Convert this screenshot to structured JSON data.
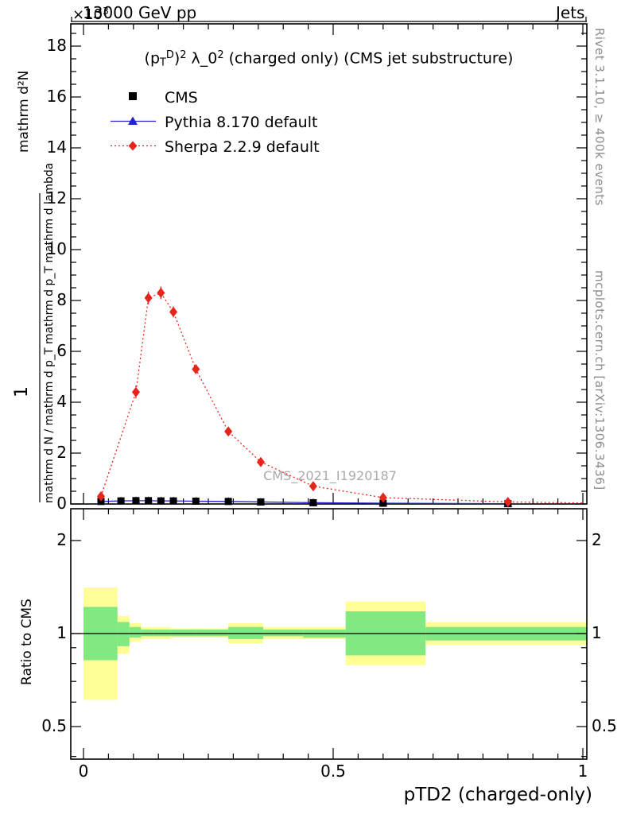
{
  "header": {
    "left": "13000 GeV pp",
    "right": "Jets"
  },
  "main_plot": {
    "multiplier_parts": [
      {
        "t": "×10"
      },
      {
        "t": "3",
        "s": "sup"
      }
    ],
    "title_parts": [
      {
        "t": "(p"
      },
      {
        "t": "T",
        "s": "sub"
      },
      {
        "t": "D",
        "s": "sup"
      },
      {
        "t": ")"
      },
      {
        "t": "2",
        "s": "sup"
      },
      {
        "t": " λ_0"
      },
      {
        "t": "2",
        "s": "sup"
      },
      {
        "t": " (charged only) (CMS jet substructure)"
      }
    ],
    "watermark": "CMS_2021_I1920187",
    "ylabel": {
      "numerator": "mathrm d²N",
      "one": "1",
      "denominator": "mathrm d N / mathrm d p_T mathrm d p_T mathrm d lambda"
    },
    "yticks": [
      "0",
      "2",
      "4",
      "6",
      "8",
      "10",
      "12",
      "14",
      "16",
      "18"
    ]
  },
  "legend": {
    "items": [
      {
        "label": "CMS",
        "marker": "square",
        "color": "#000000"
      },
      {
        "label": "Pythia 8.170 default",
        "marker": "triangle",
        "color": "#2222cc"
      },
      {
        "label": "Sherpa 2.2.9 default",
        "marker": "diamond",
        "color": "#e8251d"
      }
    ]
  },
  "sidebar": {
    "top": "Rivet 3.1.10, ≥ 400k events",
    "bottom": "mcplots.cern.ch [arXiv:1306.3436]"
  },
  "ratio": {
    "ylabel": "Ratio to CMS",
    "yticks": [
      "0.5",
      "1",
      "2"
    ]
  },
  "xaxis": {
    "label": "pTD2 (charged-only)",
    "ticks": [
      "0",
      "0.5",
      "1"
    ]
  },
  "colors": {
    "red": "#e8251d",
    "blue": "#2222cc",
    "yellow_band": "#ffff96",
    "green_band": "#82e882",
    "frame": "#000000",
    "gray_text": "#8c8c8c",
    "watermark": "#aaaaaa"
  },
  "chart_data": {
    "type": "line",
    "title": "(p_T^D)^2 λ_0^2 (charged only) (CMS jet substructure)",
    "xlabel": "pTD2 (charged-only)",
    "ylabel": "1 / mathrm d N / mathrm d p_T · mathrm d²N / (mathrm d p_T mathrm d lambda)",
    "xlim": [
      0,
      1
    ],
    "ylim_e3": [
      0,
      18.9
    ],
    "y_scale_label": "×10³",
    "grid": false,
    "legend_position": "top-left-inside",
    "series": [
      {
        "name": "CMS",
        "marker": "square",
        "color": "#000000",
        "x": [
          0.035,
          0.075,
          0.105,
          0.13,
          0.155,
          0.18,
          0.225,
          0.29,
          0.355,
          0.46,
          0.6,
          0.85
        ],
        "y_e3": [
          0.1,
          0.12,
          0.13,
          0.13,
          0.12,
          0.12,
          0.11,
          0.1,
          0.08,
          0.05,
          0.03,
          0.012
        ]
      },
      {
        "name": "Pythia 8.170 default",
        "marker": "triangle-up",
        "color": "#2222cc",
        "line": "solid",
        "x": [
          0.035,
          0.075,
          0.105,
          0.13,
          0.155,
          0.18,
          0.225,
          0.29,
          0.355,
          0.46,
          0.6,
          0.85
        ],
        "y_e3": [
          0.1,
          0.12,
          0.13,
          0.13,
          0.12,
          0.12,
          0.11,
          0.1,
          0.08,
          0.05,
          0.03,
          0.012
        ]
      },
      {
        "name": "Sherpa 2.2.9 default",
        "marker": "diamond",
        "color": "#e8251d",
        "line": "dotted",
        "x": [
          0.035,
          0.105,
          0.13,
          0.155,
          0.18,
          0.225,
          0.29,
          0.355,
          0.46,
          0.6,
          0.85
        ],
        "y_e3": [
          0.3,
          4.4,
          8.1,
          8.3,
          7.55,
          5.3,
          2.85,
          1.65,
          0.7,
          0.25,
          0.08
        ],
        "yerr_e3": [
          0.08,
          0.25,
          0.25,
          0.25,
          0.22,
          0.18,
          0.12,
          0.1,
          0.07,
          0.04,
          0.03
        ],
        "line_end": {
          "x": 1.0,
          "y_e3": 0.04
        }
      }
    ],
    "ratio_panel": {
      "ylabel": "Ratio to CMS",
      "yscale": "log",
      "ylim": [
        0.39,
        2.55
      ],
      "ref_line": 1.0,
      "bands": [
        {
          "x0": 0.0,
          "x1": 0.068,
          "yellow": [
            0.61,
            1.41
          ],
          "green": [
            0.82,
            1.22
          ]
        },
        {
          "x0": 0.068,
          "x1": 0.092,
          "yellow": [
            0.86,
            1.14
          ],
          "green": [
            0.91,
            1.09
          ]
        },
        {
          "x0": 0.092,
          "x1": 0.115,
          "yellow": [
            0.94,
            1.08
          ],
          "green": [
            0.97,
            1.05
          ]
        },
        {
          "x0": 0.115,
          "x1": 0.14,
          "yellow": [
            0.96,
            1.05
          ],
          "green": [
            0.98,
            1.03
          ]
        },
        {
          "x0": 0.14,
          "x1": 0.175,
          "yellow": [
            0.96,
            1.05
          ],
          "green": [
            0.98,
            1.03
          ]
        },
        {
          "x0": 0.175,
          "x1": 0.225,
          "yellow": [
            0.97,
            1.04
          ],
          "green": [
            0.98,
            1.03
          ]
        },
        {
          "x0": 0.225,
          "x1": 0.29,
          "yellow": [
            0.97,
            1.04
          ],
          "green": [
            0.98,
            1.03
          ]
        },
        {
          "x0": 0.29,
          "x1": 0.36,
          "yellow": [
            0.93,
            1.08
          ],
          "green": [
            0.96,
            1.05
          ]
        },
        {
          "x0": 0.36,
          "x1": 0.44,
          "yellow": [
            0.96,
            1.05
          ],
          "green": [
            0.98,
            1.03
          ]
        },
        {
          "x0": 0.44,
          "x1": 0.525,
          "yellow": [
            0.96,
            1.05
          ],
          "green": [
            0.97,
            1.03
          ]
        },
        {
          "x0": 0.525,
          "x1": 0.685,
          "yellow": [
            0.79,
            1.27
          ],
          "green": [
            0.85,
            1.18
          ]
        },
        {
          "x0": 0.685,
          "x1": 1.008,
          "yellow": [
            0.92,
            1.09
          ],
          "green": [
            0.95,
            1.05
          ]
        }
      ]
    }
  }
}
